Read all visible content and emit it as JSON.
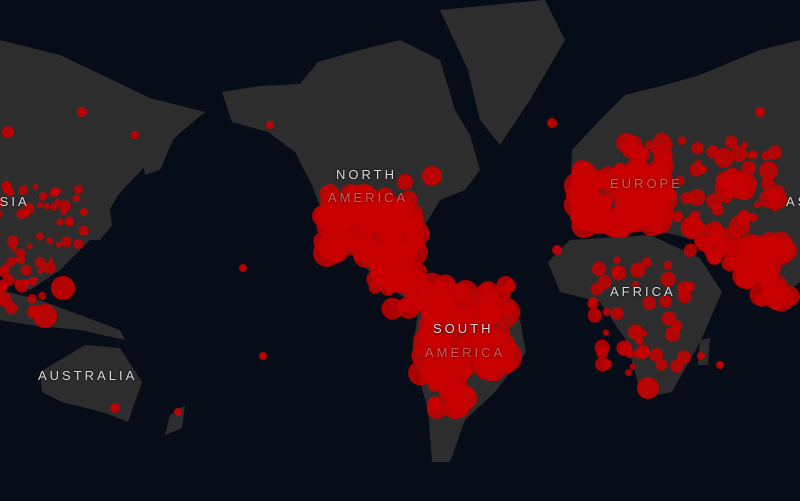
{
  "map": {
    "land_color": "#2d2d2d",
    "water_color": "#060d18",
    "marker_color": "#c80000",
    "labels": {
      "asia": "ASIA",
      "north_america_1": "NORTH",
      "north_america_2": "AMERICA",
      "europe": "EUROPE",
      "africa": "AFRICA",
      "south_america_1": "SOUTH",
      "south_america_2": "AMERICA",
      "australia": "AUSTRALIA"
    }
  }
}
